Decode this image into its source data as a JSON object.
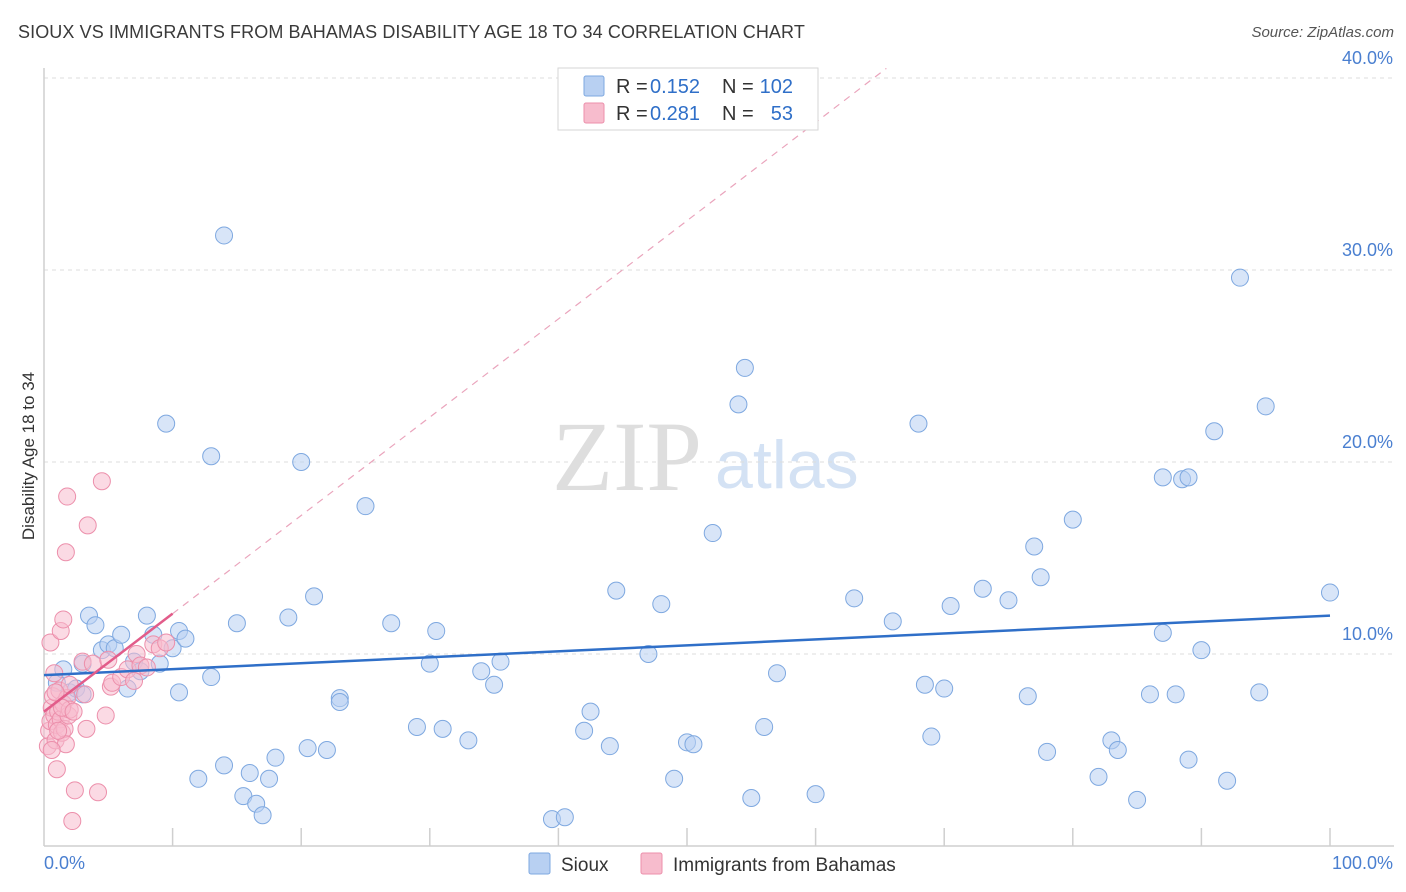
{
  "header": {
    "title": "SIOUX VS IMMIGRANTS FROM BAHAMAS DISABILITY AGE 18 TO 34 CORRELATION CHART",
    "source": "Source: ZipAtlas.com"
  },
  "watermark": {
    "zip": "ZIP",
    "atlas": "atlas"
  },
  "colors": {
    "sioux_fill": "#b8d0f2",
    "sioux_stroke": "#7ea8e0",
    "sioux_line": "#2f6fc8",
    "bahamas_fill": "#f7bccd",
    "bahamas_stroke": "#ec8fab",
    "bahamas_line": "#e25c8a",
    "tick_label": "#4a7fd0",
    "grid": "#dddddd"
  },
  "chart_data": {
    "type": "scatter",
    "title": "SIOUX VS IMMIGRANTS FROM BAHAMAS DISABILITY AGE 18 TO 34 CORRELATION CHART",
    "xlabel": "",
    "ylabel": "Disability Age 18 to 34",
    "xlim": [
      0,
      100
    ],
    "ylim": [
      0,
      40
    ],
    "x_tick_labels": [
      "0.0%",
      "100.0%"
    ],
    "y_ticks": [
      {
        "value": 10,
        "label": "10.0%"
      },
      {
        "value": 20,
        "label": "20.0%"
      },
      {
        "value": 30,
        "label": "30.0%"
      },
      {
        "value": 40,
        "label": "40.0%"
      }
    ],
    "legend": [
      {
        "series": "Sioux",
        "r_label": "R =",
        "r_value": "0.152",
        "n_label": "N =",
        "n_value": "102"
      },
      {
        "series": "Immigrants from Bahamas",
        "r_label": "R =",
        "r_value": "0.281",
        "n_label": "N =",
        "n_value": "53"
      }
    ],
    "series": [
      {
        "name": "Sioux",
        "trend": [
          [
            0,
            8.9
          ],
          [
            100,
            12.0
          ]
        ],
        "points": [
          [
            1,
            8.5
          ],
          [
            1.5,
            9.2
          ],
          [
            2,
            8.0
          ],
          [
            2.5,
            8.2
          ],
          [
            3,
            7.9
          ],
          [
            3,
            9.5
          ],
          [
            3.5,
            12.0
          ],
          [
            4,
            11.5
          ],
          [
            4.5,
            10.2
          ],
          [
            5,
            10.5
          ],
          [
            5.5,
            10.3
          ],
          [
            6,
            11.0
          ],
          [
            6.5,
            8.2
          ],
          [
            7,
            9.6
          ],
          [
            7.5,
            9.1
          ],
          [
            8,
            12.0
          ],
          [
            8.5,
            11.0
          ],
          [
            9,
            9.5
          ],
          [
            9.5,
            22.0
          ],
          [
            10,
            10.3
          ],
          [
            10.5,
            8.0
          ],
          [
            10.5,
            11.2
          ],
          [
            11,
            10.8
          ],
          [
            12,
            3.5
          ],
          [
            13,
            20.3
          ],
          [
            13,
            8.8
          ],
          [
            14,
            31.8
          ],
          [
            14,
            4.2
          ],
          [
            15,
            11.6
          ],
          [
            15.5,
            2.6
          ],
          [
            16,
            3.8
          ],
          [
            16.5,
            2.2
          ],
          [
            17,
            1.6
          ],
          [
            17.5,
            3.5
          ],
          [
            18,
            4.6
          ],
          [
            19,
            11.9
          ],
          [
            20,
            20.0
          ],
          [
            20.5,
            5.1
          ],
          [
            21,
            13.0
          ],
          [
            22,
            5.0
          ],
          [
            23,
            7.7
          ],
          [
            23,
            7.5
          ],
          [
            25,
            17.7
          ],
          [
            27,
            11.6
          ],
          [
            29,
            6.2
          ],
          [
            30,
            9.5
          ],
          [
            30.5,
            11.2
          ],
          [
            31,
            6.1
          ],
          [
            33,
            5.5
          ],
          [
            34,
            9.1
          ],
          [
            35,
            8.4
          ],
          [
            35.5,
            9.6
          ],
          [
            39.5,
            1.4
          ],
          [
            40.5,
            1.5
          ],
          [
            42,
            6.0
          ],
          [
            42.5,
            7.0
          ],
          [
            44,
            5.2
          ],
          [
            44.5,
            13.3
          ],
          [
            47,
            10.0
          ],
          [
            48,
            12.6
          ],
          [
            49,
            3.5
          ],
          [
            50,
            5.4
          ],
          [
            50.5,
            5.3
          ],
          [
            52,
            16.3
          ],
          [
            54,
            23.0
          ],
          [
            54.5,
            24.9
          ],
          [
            55,
            2.5
          ],
          [
            56,
            6.2
          ],
          [
            57,
            9.0
          ],
          [
            60,
            2.7
          ],
          [
            63,
            12.9
          ],
          [
            66,
            11.7
          ],
          [
            68,
            22.0
          ],
          [
            68.5,
            8.4
          ],
          [
            69,
            5.7
          ],
          [
            70,
            8.2
          ],
          [
            70.5,
            12.5
          ],
          [
            73,
            13.4
          ],
          [
            75,
            12.8
          ],
          [
            76.5,
            7.8
          ],
          [
            77,
            15.6
          ],
          [
            77.5,
            14.0
          ],
          [
            78,
            4.9
          ],
          [
            80,
            17.0
          ],
          [
            82,
            3.6
          ],
          [
            83,
            5.5
          ],
          [
            83.5,
            5.0
          ],
          [
            85,
            2.4
          ],
          [
            86,
            7.9
          ],
          [
            87,
            19.2
          ],
          [
            87,
            11.1
          ],
          [
            88,
            7.9
          ],
          [
            88.5,
            19.1
          ],
          [
            89,
            19.2
          ],
          [
            89,
            4.5
          ],
          [
            90,
            10.2
          ],
          [
            91,
            21.6
          ],
          [
            92,
            3.4
          ],
          [
            93,
            29.6
          ],
          [
            94.5,
            8.0
          ],
          [
            95,
            22.9
          ],
          [
            100,
            13.2
          ]
        ]
      },
      {
        "name": "Immigrants from Bahamas",
        "trend": [
          [
            0,
            7.0
          ],
          [
            10,
            12.1
          ]
        ],
        "dashed_trend": [
          [
            10,
            12.1
          ],
          [
            65.5,
            40.5
          ]
        ],
        "points": [
          [
            0.3,
            5.2
          ],
          [
            0.4,
            6.0
          ],
          [
            0.5,
            6.5
          ],
          [
            0.6,
            7.2
          ],
          [
            0.7,
            7.8
          ],
          [
            0.8,
            6.8
          ],
          [
            0.9,
            5.5
          ],
          [
            1.0,
            6.3
          ],
          [
            1.1,
            7.0
          ],
          [
            1.2,
            8.1
          ],
          [
            1.3,
            6.6
          ],
          [
            1.4,
            5.9
          ],
          [
            1.5,
            7.4
          ],
          [
            1.6,
            6.1
          ],
          [
            1.7,
            5.3
          ],
          [
            1.8,
            7.7
          ],
          [
            1.9,
            6.8
          ],
          [
            2.0,
            7.1
          ],
          [
            0.5,
            10.6
          ],
          [
            0.8,
            9.0
          ],
          [
            1.0,
            4.0
          ],
          [
            1.3,
            11.2
          ],
          [
            1.5,
            11.8
          ],
          [
            1.7,
            15.3
          ],
          [
            1.8,
            18.2
          ],
          [
            2.0,
            8.4
          ],
          [
            2.2,
            1.3
          ],
          [
            2.4,
            2.9
          ],
          [
            3,
            9.6
          ],
          [
            3.2,
            7.9
          ],
          [
            3.3,
            6.1
          ],
          [
            3.4,
            16.7
          ],
          [
            3.8,
            9.5
          ],
          [
            4.2,
            2.8
          ],
          [
            4.5,
            19.0
          ],
          [
            4.8,
            6.8
          ],
          [
            5,
            9.7
          ],
          [
            5.2,
            8.3
          ],
          [
            5.3,
            8.5
          ],
          [
            6,
            8.8
          ],
          [
            6.5,
            9.2
          ],
          [
            7,
            8.6
          ],
          [
            7.2,
            10.0
          ],
          [
            7.5,
            9.4
          ],
          [
            8.0,
            9.3
          ],
          [
            8.5,
            10.5
          ],
          [
            9.0,
            10.3
          ],
          [
            9.5,
            10.6
          ],
          [
            0.6,
            5.0
          ],
          [
            1.1,
            6.0
          ],
          [
            1.4,
            7.2
          ],
          [
            2.3,
            7.0
          ],
          [
            0.9,
            8.0
          ]
        ]
      }
    ]
  },
  "bottom_legend": {
    "sioux": "Sioux",
    "bahamas": "Immigrants from Bahamas"
  }
}
